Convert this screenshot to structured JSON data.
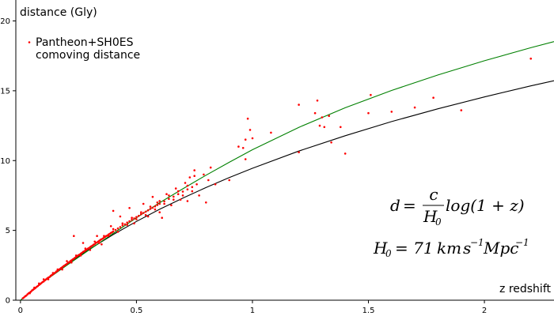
{
  "chart_data": {
    "type": "scatter",
    "ylabel": "distance (Gly)",
    "xlabel": "z redshift",
    "xlim": [
      -0.02,
      2.3
    ],
    "ylim": [
      0,
      21.5
    ],
    "x_ticks": [
      0,
      0.5,
      1,
      1.5,
      2
    ],
    "x_tick_labels": [
      "0",
      "0.5",
      "1",
      "1.5",
      "2"
    ],
    "y_ticks": [
      0,
      5,
      10,
      15,
      20
    ],
    "y_tick_labels": [
      "0",
      "5",
      "10",
      "15",
      "20"
    ],
    "grid": false,
    "legend_position": "top-left",
    "legend": [
      {
        "label": "Pantheon+SH0ES",
        "marker": "dot",
        "color": "#ff0000"
      },
      {
        "label": "comoving distance",
        "marker": "none",
        "color": "#000000"
      }
    ],
    "series": [
      {
        "name": "Pantheon+SH0ES",
        "kind": "points",
        "color": "#ff0000",
        "points": [
          [
            0.01,
            0.14
          ],
          [
            0.015,
            0.2
          ],
          [
            0.02,
            0.28
          ],
          [
            0.025,
            0.33
          ],
          [
            0.03,
            0.42
          ],
          [
            0.035,
            0.49
          ],
          [
            0.04,
            0.55
          ],
          [
            0.045,
            0.61
          ],
          [
            0.05,
            0.7
          ],
          [
            0.055,
            0.76
          ],
          [
            0.06,
            0.82
          ],
          [
            0.065,
            0.88
          ],
          [
            0.07,
            0.96
          ],
          [
            0.075,
            1.02
          ],
          [
            0.08,
            1.09
          ],
          [
            0.085,
            1.16
          ],
          [
            0.09,
            1.22
          ],
          [
            0.095,
            1.3
          ],
          [
            0.1,
            1.34
          ],
          [
            0.105,
            1.42
          ],
          [
            0.11,
            1.49
          ],
          [
            0.115,
            1.56
          ],
          [
            0.12,
            1.62
          ],
          [
            0.125,
            1.66
          ],
          [
            0.13,
            1.75
          ],
          [
            0.135,
            1.8
          ],
          [
            0.14,
            1.86
          ],
          [
            0.145,
            1.93
          ],
          [
            0.15,
            1.98
          ],
          [
            0.155,
            2.06
          ],
          [
            0.16,
            2.1
          ],
          [
            0.165,
            2.18
          ],
          [
            0.17,
            2.24
          ],
          [
            0.175,
            2.3
          ],
          [
            0.18,
            2.36
          ],
          [
            0.185,
            2.43
          ],
          [
            0.19,
            2.49
          ],
          [
            0.195,
            2.54
          ],
          [
            0.2,
            2.6
          ],
          [
            0.205,
            2.68
          ],
          [
            0.21,
            2.72
          ],
          [
            0.215,
            2.8
          ],
          [
            0.22,
            2.85
          ],
          [
            0.225,
            2.92
          ],
          [
            0.23,
            2.97
          ],
          [
            0.235,
            3.04
          ],
          [
            0.24,
            3.1
          ],
          [
            0.245,
            3.16
          ],
          [
            0.25,
            3.22
          ],
          [
            0.255,
            3.27
          ],
          [
            0.26,
            3.33
          ],
          [
            0.265,
            3.39
          ],
          [
            0.27,
            3.46
          ],
          [
            0.275,
            3.5
          ],
          [
            0.28,
            3.57
          ],
          [
            0.285,
            3.62
          ],
          [
            0.29,
            3.69
          ],
          [
            0.295,
            3.73
          ],
          [
            0.3,
            3.8
          ],
          [
            0.305,
            3.86
          ],
          [
            0.31,
            3.91
          ],
          [
            0.315,
            3.98
          ],
          [
            0.32,
            4.02
          ],
          [
            0.325,
            4.1
          ],
          [
            0.33,
            4.14
          ],
          [
            0.335,
            4.2
          ],
          [
            0.34,
            4.26
          ],
          [
            0.345,
            4.32
          ],
          [
            0.35,
            4.37
          ],
          [
            0.355,
            4.42
          ],
          [
            0.36,
            4.48
          ],
          [
            0.365,
            4.54
          ],
          [
            0.37,
            4.6
          ],
          [
            0.375,
            4.64
          ],
          [
            0.38,
            4.71
          ],
          [
            0.385,
            4.76
          ],
          [
            0.39,
            4.82
          ],
          [
            0.395,
            4.86
          ],
          [
            0.4,
            4.93
          ],
          [
            0.41,
            5.03
          ],
          [
            0.42,
            5.14
          ],
          [
            0.43,
            5.24
          ],
          [
            0.44,
            5.36
          ],
          [
            0.45,
            5.44
          ],
          [
            0.46,
            5.56
          ],
          [
            0.47,
            5.65
          ],
          [
            0.48,
            5.76
          ],
          [
            0.49,
            5.86
          ],
          [
            0.5,
            5.96
          ],
          [
            0.51,
            6.04
          ],
          [
            0.52,
            6.16
          ],
          [
            0.53,
            6.25
          ],
          [
            0.54,
            6.34
          ],
          [
            0.55,
            6.44
          ],
          [
            0.56,
            6.54
          ],
          [
            0.57,
            6.62
          ],
          [
            0.58,
            6.72
          ],
          [
            0.59,
            6.82
          ],
          [
            0.6,
            6.9
          ],
          [
            0.62,
            7.08
          ],
          [
            0.64,
            7.26
          ],
          [
            0.66,
            7.42
          ],
          [
            0.68,
            7.6
          ],
          [
            0.7,
            7.78
          ],
          [
            0.72,
            7.94
          ],
          [
            0.74,
            8.1
          ],
          [
            0.76,
            8.3
          ],
          [
            0.04,
            0.5
          ],
          [
            0.06,
            0.9
          ],
          [
            0.08,
            1.2
          ],
          [
            0.1,
            1.5
          ],
          [
            0.12,
            1.5
          ],
          [
            0.14,
            1.95
          ],
          [
            0.16,
            2.2
          ],
          [
            0.18,
            2.2
          ],
          [
            0.2,
            2.8
          ],
          [
            0.22,
            2.7
          ],
          [
            0.24,
            3.2
          ],
          [
            0.26,
            3.2
          ],
          [
            0.28,
            3.7
          ],
          [
            0.3,
            3.6
          ],
          [
            0.32,
            4.2
          ],
          [
            0.34,
            4.1
          ],
          [
            0.36,
            4.6
          ],
          [
            0.38,
            4.6
          ],
          [
            0.4,
            5.1
          ],
          [
            0.42,
            4.9
          ],
          [
            0.44,
            5.5
          ],
          [
            0.46,
            5.4
          ],
          [
            0.48,
            5.9
          ],
          [
            0.5,
            5.8
          ],
          [
            0.52,
            6.3
          ],
          [
            0.54,
            6.1
          ],
          [
            0.56,
            6.7
          ],
          [
            0.58,
            6.5
          ],
          [
            0.6,
            7.1
          ],
          [
            0.62,
            6.9
          ],
          [
            0.64,
            7.5
          ],
          [
            0.66,
            7.2
          ],
          [
            0.68,
            7.8
          ],
          [
            0.7,
            7.5
          ],
          [
            0.72,
            8.2
          ],
          [
            0.74,
            7.8
          ],
          [
            0.23,
            4.6
          ],
          [
            0.27,
            4.1
          ],
          [
            0.33,
            4.6
          ],
          [
            0.35,
            4.0
          ],
          [
            0.39,
            5.3
          ],
          [
            0.4,
            6.4
          ],
          [
            0.43,
            6.0
          ],
          [
            0.47,
            6.6
          ],
          [
            0.49,
            5.5
          ],
          [
            0.53,
            6.9
          ],
          [
            0.55,
            6.0
          ],
          [
            0.57,
            7.4
          ],
          [
            0.59,
            7.0
          ],
          [
            0.6,
            6.3
          ],
          [
            0.61,
            5.9
          ],
          [
            0.63,
            7.6
          ],
          [
            0.65,
            6.8
          ],
          [
            0.67,
            8.0
          ],
          [
            0.69,
            7.2
          ],
          [
            0.71,
            8.4
          ],
          [
            0.72,
            7.1
          ],
          [
            0.73,
            8.8
          ],
          [
            0.75,
            9.3
          ],
          [
            0.77,
            7.5
          ],
          [
            0.79,
            9.0
          ],
          [
            0.8,
            7.0
          ],
          [
            0.82,
            9.5
          ],
          [
            0.81,
            8.6
          ],
          [
            0.84,
            8.3
          ],
          [
            0.75,
            8.9
          ],
          [
            0.9,
            8.6
          ],
          [
            0.94,
            11.0
          ],
          [
            0.96,
            10.9
          ],
          [
            0.97,
            11.5
          ],
          [
            0.97,
            10.1
          ],
          [
            0.98,
            13.0
          ],
          [
            0.99,
            12.2
          ],
          [
            1.0,
            11.6
          ],
          [
            1.08,
            12.0
          ],
          [
            1.2,
            14.0
          ],
          [
            1.2,
            10.6
          ],
          [
            1.27,
            13.4
          ],
          [
            1.28,
            14.3
          ],
          [
            1.29,
            12.5
          ],
          [
            1.3,
            13.1
          ],
          [
            1.31,
            12.4
          ],
          [
            1.33,
            13.2
          ],
          [
            1.34,
            11.3
          ],
          [
            1.38,
            12.4
          ],
          [
            1.4,
            10.5
          ],
          [
            1.5,
            13.4
          ],
          [
            1.51,
            14.7
          ],
          [
            1.6,
            13.5
          ],
          [
            1.7,
            13.8
          ],
          [
            1.78,
            14.5
          ],
          [
            1.9,
            13.6
          ],
          [
            2.2,
            17.3
          ]
        ]
      },
      {
        "name": "comoving distance",
        "kind": "line",
        "color": "#000000",
        "points": [
          [
            0,
            0
          ],
          [
            0.1,
            1.35
          ],
          [
            0.2,
            2.57
          ],
          [
            0.3,
            3.68
          ],
          [
            0.4,
            4.7
          ],
          [
            0.5,
            5.64
          ],
          [
            0.6,
            6.51
          ],
          [
            0.7,
            7.31
          ],
          [
            0.8,
            8.07
          ],
          [
            0.9,
            8.78
          ],
          [
            1.0,
            9.45
          ],
          [
            1.2,
            10.68
          ],
          [
            1.4,
            11.78
          ],
          [
            1.6,
            12.79
          ],
          [
            1.8,
            13.71
          ],
          [
            2.0,
            14.56
          ],
          [
            2.2,
            15.35
          ],
          [
            2.3,
            15.72
          ]
        ]
      },
      {
        "kind": "line",
        "color": "#008000",
        "points": [
          [
            0,
            0
          ],
          [
            0.1,
            1.33
          ],
          [
            0.2,
            2.5
          ],
          [
            0.3,
            3.65
          ],
          [
            0.4,
            4.78
          ],
          [
            0.5,
            5.9
          ],
          [
            0.6,
            6.98
          ],
          [
            0.7,
            7.98
          ],
          [
            0.8,
            8.95
          ],
          [
            0.9,
            9.88
          ],
          [
            1.0,
            10.78
          ],
          [
            1.2,
            12.38
          ],
          [
            1.4,
            13.78
          ],
          [
            1.6,
            15.02
          ],
          [
            1.8,
            16.13
          ],
          [
            2.0,
            17.15
          ],
          [
            2.2,
            18.08
          ],
          [
            2.3,
            18.52
          ]
        ]
      }
    ]
  },
  "annotation": {
    "d": "d",
    "eq": "=",
    "c": "c",
    "H0_H": "H",
    "H0_sub": "0",
    "log": "log(1 + z)",
    "line2_H": "H",
    "line2_sub": "0",
    "line2_value": "= 71",
    "line2_km": "km",
    "line2_s": "s",
    "line2_s_exp": "−1",
    "line2_mpc": "Mpc",
    "line2_mpc_exp": "−1"
  }
}
